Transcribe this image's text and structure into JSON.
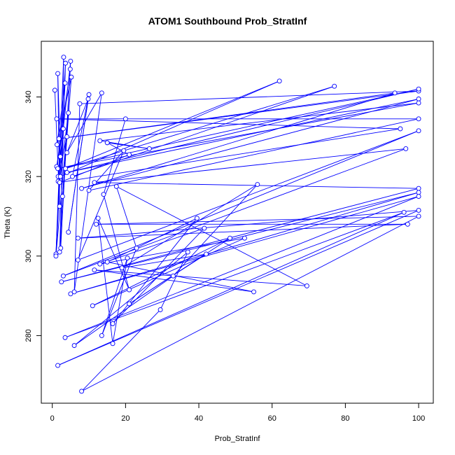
{
  "chart_data": {
    "type": "line",
    "title": "ATOM1 Southbound Prob_StratInf",
    "xlabel": "Prob_StratInf",
    "ylabel": "Theta (K)",
    "xlim": [
      -3,
      104
    ],
    "ylim": [
      263,
      354
    ],
    "xticks": [
      0,
      20,
      40,
      60,
      80,
      100
    ],
    "yticks": [
      280,
      300,
      320,
      340
    ],
    "grid": false,
    "legend": "none",
    "markers": "open-circle",
    "line_color": "#0000ff",
    "series": [
      {
        "points": [
          [
            0.7,
            341.7
          ],
          [
            2.0,
            312.5
          ],
          [
            1.5,
            345.9
          ],
          [
            2.2,
            325.0
          ],
          [
            1.0,
            300.5
          ],
          [
            3.1,
            350.0
          ],
          [
            2.3,
            302.0
          ],
          [
            4.9,
            347.0
          ],
          [
            1.2,
            322.5
          ],
          [
            3.0,
            332.0
          ],
          [
            1.6,
            318.8
          ],
          [
            3.6,
            348.5
          ],
          [
            2.0,
            301.0
          ],
          [
            5.0,
            349.0
          ],
          [
            1.6,
            320.0
          ],
          [
            4.0,
            330.0
          ],
          [
            2.8,
            315.0
          ],
          [
            5.2,
            345.0
          ],
          [
            1.3,
            328.0
          ],
          [
            3.5,
            343.5
          ],
          [
            1.0,
            300.0
          ],
          [
            4.4,
            336.0
          ],
          [
            2.2,
            320.0
          ],
          [
            62.0,
            344.0
          ],
          [
            3.6,
            322.0
          ],
          [
            77.0,
            342.7
          ],
          [
            5.5,
            320.0
          ],
          [
            10.0,
            340.6
          ],
          [
            4.4,
            306.0
          ],
          [
            9.8,
            339.5
          ],
          [
            4.0,
            326.0
          ],
          [
            13.5,
            341.0
          ],
          [
            6.0,
            291.0
          ],
          [
            7.5,
            338.3
          ],
          [
            100.0,
            341.5
          ],
          [
            1.8,
            329.5
          ],
          [
            93.5,
            341.0
          ],
          [
            8.0,
            317.0
          ],
          [
            100.0,
            339.5
          ],
          [
            4.0,
            321.0
          ],
          [
            100.0,
            342.0
          ],
          [
            1.5,
            322.0
          ],
          [
            100.0,
            338.5
          ],
          [
            13.0,
            329.0
          ],
          [
            26.5,
            327.0
          ],
          [
            15.0,
            328.5
          ],
          [
            21.0,
            325.5
          ],
          [
            2.0,
            318.5
          ],
          [
            95.0,
            332.0
          ],
          [
            1.2,
            334.5
          ],
          [
            100.0,
            334.5
          ],
          [
            10.0,
            316.5
          ],
          [
            19.5,
            326.5
          ],
          [
            7.0,
            299.0
          ],
          [
            100.0,
            331.5
          ],
          [
            3.0,
            295.0
          ],
          [
            96.5,
            327.0
          ],
          [
            11.5,
            318.5
          ],
          [
            100.0,
            317.0
          ],
          [
            2.5,
            293.5
          ],
          [
            100.0,
            316.0
          ],
          [
            5.0,
            290.5
          ],
          [
            100.0,
            315.0
          ],
          [
            3.5,
            279.5
          ],
          [
            96.0,
            311.0
          ],
          [
            1.5,
            272.5
          ],
          [
            100.0,
            311.5
          ],
          [
            7.0,
            304.5
          ],
          [
            97.0,
            308.0
          ],
          [
            12.0,
            308.0
          ],
          [
            100.0,
            310.0
          ],
          [
            8.0,
            266.0
          ],
          [
            29.5,
            286.5
          ],
          [
            37.0,
            301.0
          ],
          [
            6.0,
            277.5
          ],
          [
            33.0,
            295.0
          ],
          [
            56.0,
            318.0
          ],
          [
            19.0,
            297.0
          ],
          [
            42.0,
            300.5
          ],
          [
            21.0,
            288.0
          ],
          [
            48.5,
            304.5
          ],
          [
            11.0,
            287.5
          ],
          [
            52.5,
            304.5
          ],
          [
            13.0,
            298.0
          ],
          [
            41.5,
            307.0
          ],
          [
            16.5,
            283.0
          ],
          [
            39.5,
            309.5
          ],
          [
            15.0,
            298.5
          ],
          [
            55.0,
            291.0
          ],
          [
            11.5,
            296.5
          ],
          [
            69.5,
            292.5
          ],
          [
            17.5,
            317.5
          ],
          [
            23.0,
            302.0
          ],
          [
            13.5,
            280.0
          ],
          [
            20.5,
            299.5
          ],
          [
            16.5,
            278.0
          ],
          [
            12.5,
            309.5
          ],
          [
            21.0,
            291.5
          ],
          [
            14.0,
            315.5
          ],
          [
            20.0,
            334.5
          ]
        ]
      }
    ]
  }
}
